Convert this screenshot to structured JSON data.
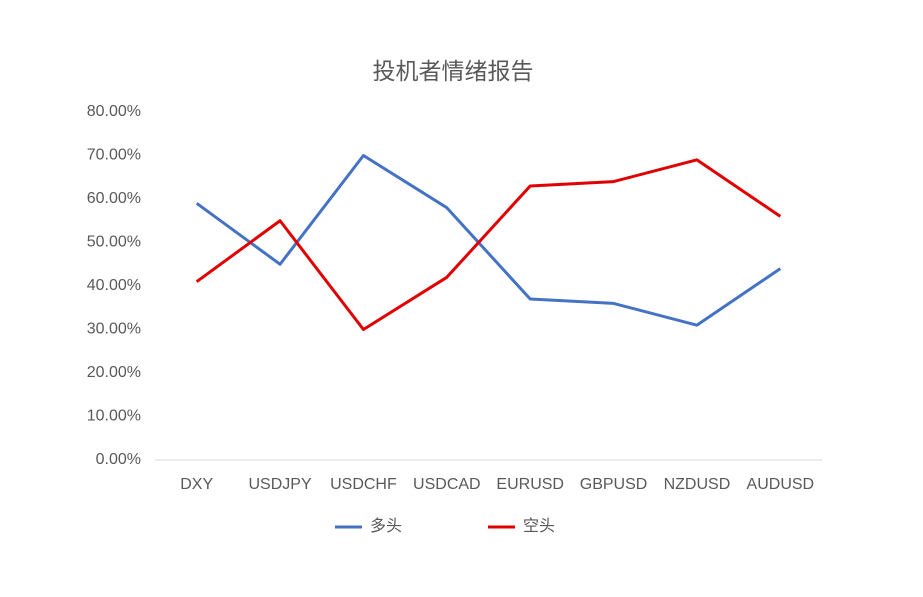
{
  "chart_data": {
    "type": "line",
    "title": "投机者情绪报告",
    "categories": [
      "DXY",
      "USDJPY",
      "USDCHF",
      "USDCAD",
      "EURUSD",
      "GBPUSD",
      "NZDUSD",
      "AUDUSD"
    ],
    "series": [
      {
        "name": "多头",
        "color": "#4472c4",
        "values": [
          59,
          45,
          70,
          58,
          37,
          36,
          31,
          44
        ]
      },
      {
        "name": "空头",
        "color": "#e00000",
        "values": [
          41,
          55,
          30,
          42,
          63,
          64,
          69,
          56
        ]
      }
    ],
    "ylim": [
      0,
      80
    ],
    "yticks": [
      {
        "value": 0,
        "label": "0.00%"
      },
      {
        "value": 10,
        "label": "10.00%"
      },
      {
        "value": 20,
        "label": "20.00%"
      },
      {
        "value": 30,
        "label": "30.00%"
      },
      {
        "value": 40,
        "label": "40.00%"
      },
      {
        "value": 50,
        "label": "50.00%"
      },
      {
        "value": 60,
        "label": "60.00%"
      },
      {
        "value": 70,
        "label": "70.00%"
      },
      {
        "value": 80,
        "label": "80.00%"
      }
    ],
    "legend": "bottom"
  }
}
